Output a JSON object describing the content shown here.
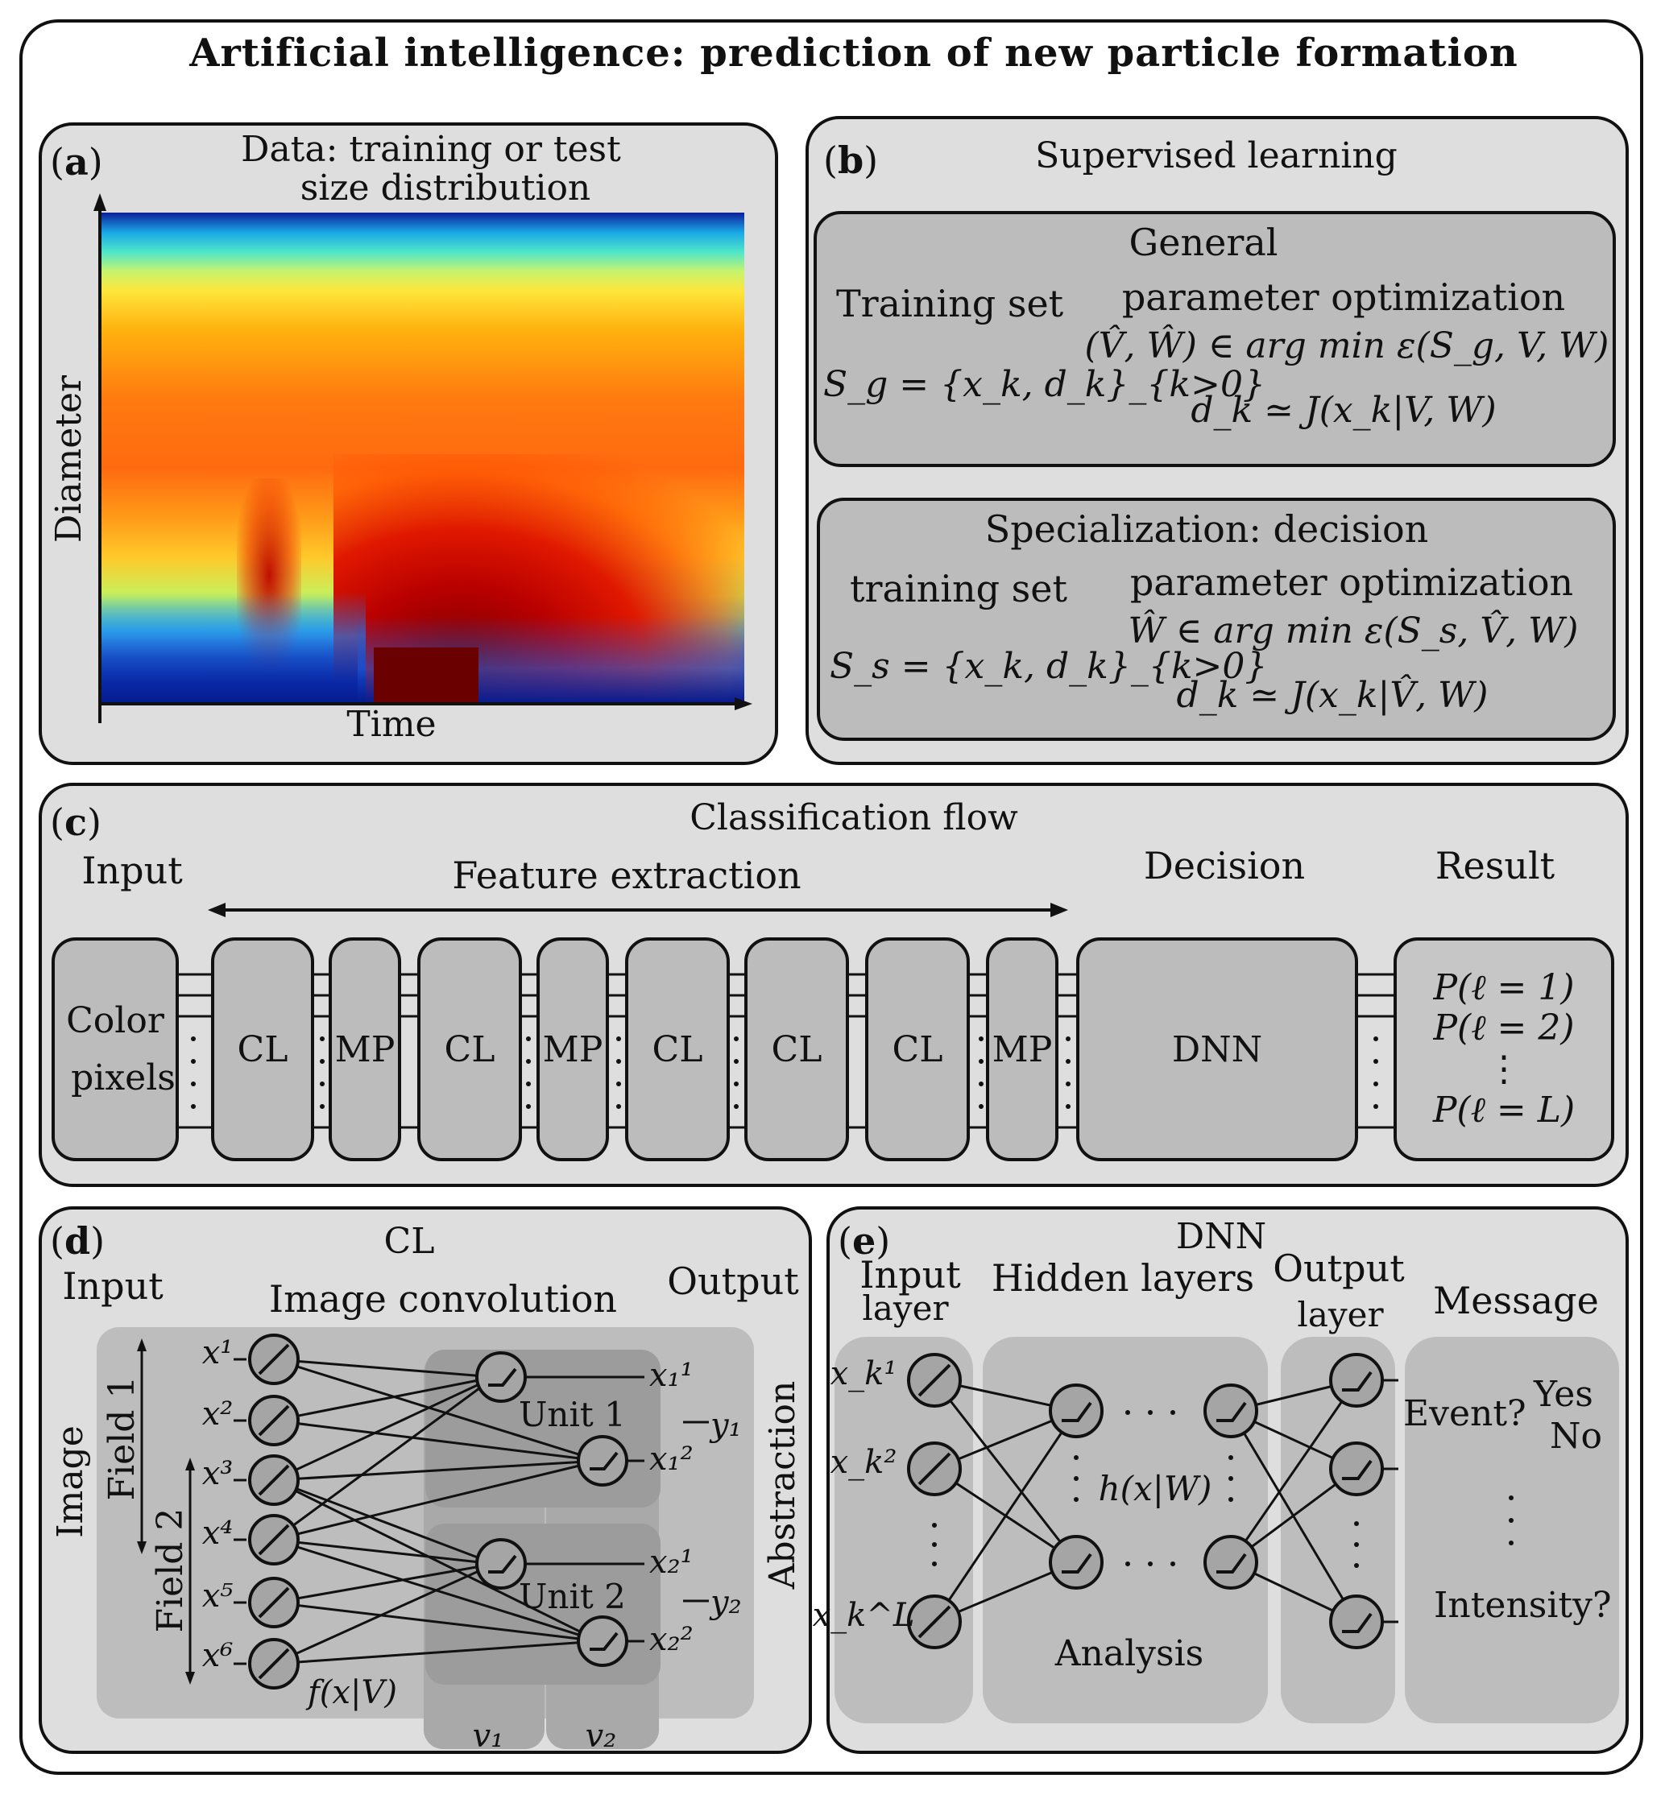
{
  "title": "Artificial intelligence: prediction of new particle formation",
  "panel_a": {
    "label": "a",
    "heading_line1": "Data: training or test",
    "heading_line2": "size distribution",
    "ylabel": "Diameter",
    "xlabel": "Time"
  },
  "panel_b": {
    "label": "b",
    "heading": "Supervised learning",
    "general": {
      "title": "General",
      "training_set": "Training set",
      "set_formula": "S_g = {x_k, d_k}_{k>0}",
      "opt_title": "parameter optimization",
      "opt_formula": "(V̂, Ŵ) ∈ arg min ε(S_g, V, W)",
      "model_formula": "d_k ≃ J(x_k|V, W)"
    },
    "special": {
      "title": "Specialization: decision",
      "training_set": "training set",
      "set_formula": "S_s = {x_k, d_k}_{k>0}",
      "opt_title": "parameter optimization",
      "opt_formula": "Ŵ ∈ arg min ε(S_s, V̂, W)",
      "model_formula": "d_k ≃ J(x_k|V̂, W)"
    }
  },
  "panel_c": {
    "label": "c",
    "heading": "Classification flow",
    "input": "Input",
    "feature": "Feature extraction",
    "decision": "Decision",
    "result": "Result",
    "color_line1": "Color",
    "color_line2": "pixels",
    "layers": [
      "CL",
      "MP",
      "CL",
      "MP",
      "CL",
      "CL",
      "CL",
      "MP"
    ],
    "dnn": "DNN",
    "p1": "P(ℓ = 1)",
    "p2": "P(ℓ = 2)",
    "pdots": "⋮",
    "pL": "P(ℓ = L)"
  },
  "panel_d": {
    "label": "d",
    "heading": "CL",
    "input": "Input",
    "sub": "Image convolution",
    "output": "Output",
    "image": "Image",
    "field1": "Field 1",
    "field2": "Field 2",
    "abstraction": "Abstraction",
    "unit1": "Unit 1",
    "unit2": "Unit 2",
    "fxv": "f(x|V)",
    "v1": "v₁",
    "v2": "v₂",
    "inputs": [
      "x¹",
      "x²",
      "x³",
      "x⁴",
      "x⁵",
      "x⁶"
    ],
    "outs": [
      "x₁¹",
      "x₁²",
      "x₂¹",
      "x₂²"
    ],
    "y1": "y₁",
    "y2": "y₂"
  },
  "panel_e": {
    "label": "e",
    "heading": "DNN",
    "input_layer_1": "Input",
    "input_layer_2": "layer",
    "hidden": "Hidden layers",
    "output_layer_1": "Output",
    "output_layer_2": "layer",
    "message": "Message",
    "inputs": [
      "x_k¹",
      "x_k²",
      "x_k^L"
    ],
    "hxw": "h(x|W)",
    "analysis": "Analysis",
    "event": "Event?",
    "yes": "Yes",
    "no": "No",
    "intensity": "Intensity?"
  }
}
